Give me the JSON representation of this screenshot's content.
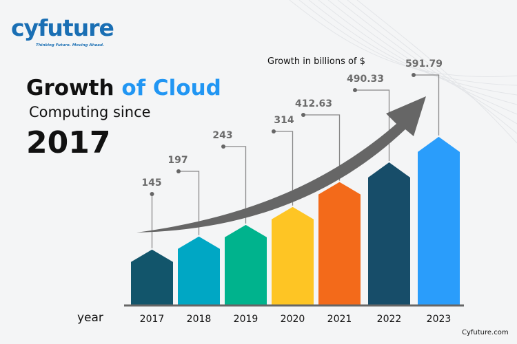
{
  "branding": {
    "logo_text": "cyfuture",
    "tagline": "Thinking Future. Moving Ahead.",
    "site": "Cyfuture.com"
  },
  "title": {
    "part1": "Growth ",
    "part2": "of Cloud",
    "line2": "Computing since",
    "line3": "2017"
  },
  "chart_data": {
    "type": "bar",
    "xlabel": "year",
    "unit_label": "Growth in billions of $",
    "categories": [
      "2017",
      "2018",
      "2019",
      "2020",
      "2021",
      "2022",
      "2023"
    ],
    "values": [
      145,
      197,
      243,
      314,
      412.63,
      490.33,
      591.79
    ],
    "value_labels": [
      "145",
      "197",
      "243",
      "314",
      "412.63",
      "490.33",
      "591.79"
    ],
    "colors": [
      "#12556b",
      "#00a7c4",
      "#00b38d",
      "#fec524",
      "#f36a1a",
      "#174d69",
      "#2a9dfb"
    ],
    "trend_arrow_color": "#666666",
    "grid": false
  }
}
